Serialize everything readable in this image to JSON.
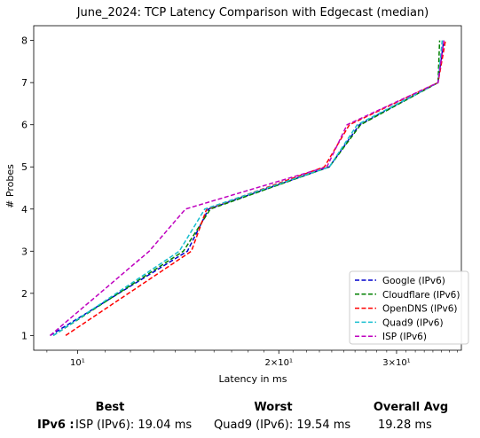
{
  "chart_data": {
    "type": "line",
    "title": "June_2024: TCP Latency Comparison with Edgecast (median)",
    "xlabel": "Latency in ms",
    "ylabel": "# Probes",
    "xscale": "log",
    "xlim": [
      8.6,
      37.5
    ],
    "ylim": [
      0.65,
      8.35
    ],
    "xticks": [
      {
        "value": 10,
        "label": "10¹"
      },
      {
        "value": 20,
        "label": "2×10¹"
      },
      {
        "value": 30,
        "label": "3×10¹"
      }
    ],
    "yticks": [
      1,
      2,
      3,
      4,
      5,
      6,
      7,
      8
    ],
    "grid": false,
    "legend_position": "bottom-right",
    "series": [
      {
        "name": "Google (IPv6)",
        "color": "#0000cc",
        "x": [
          9.1,
          14.6,
          15.7,
          23.8,
          26.4,
          34.6,
          35.3
        ],
        "y": [
          1,
          3,
          4,
          5,
          6,
          7,
          8
        ]
      },
      {
        "name": "Cloudflare (IPv6)",
        "color": "#008000",
        "x": [
          9.2,
          14.4,
          15.8,
          23.8,
          26.5,
          34.6,
          34.8
        ],
        "y": [
          1,
          3,
          4,
          5,
          6,
          7,
          8
        ]
      },
      {
        "name": "OpenDNS (IPv6)",
        "color": "#ff0000",
        "x": [
          9.6,
          14.8,
          15.6,
          23.4,
          25.5,
          34.6,
          35.5
        ],
        "y": [
          1,
          3,
          4,
          5,
          6,
          7,
          8
        ]
      },
      {
        "name": "Quad9 (IPv6)",
        "color": "#17becf",
        "x": [
          9.2,
          14.2,
          15.5,
          23.8,
          26.2,
          34.6,
          35.1
        ],
        "y": [
          1,
          3,
          4,
          5,
          6,
          7,
          8
        ]
      },
      {
        "name": "ISP (IPv6)",
        "color": "#bf00bf",
        "x": [
          9.1,
          12.8,
          14.5,
          23.6,
          25.3,
          34.6,
          35.3
        ],
        "y": [
          1,
          3,
          4,
          5,
          6,
          7,
          8
        ]
      }
    ]
  },
  "summary": {
    "headers": {
      "best": "Best",
      "worst": "Worst",
      "avg": "Overall Avg"
    },
    "row_label": "IPv6 :",
    "best": "ISP (IPv6): 19.04 ms",
    "worst": "Quad9 (IPv6): 19.54 ms",
    "avg": "19.28 ms"
  }
}
